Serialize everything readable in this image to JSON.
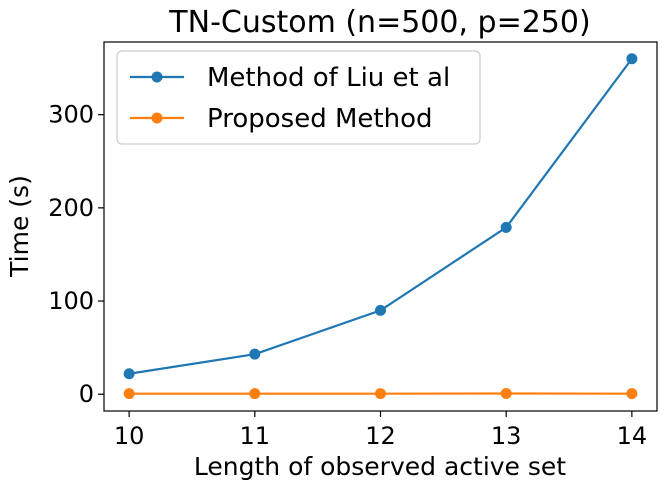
{
  "chart_data": {
    "type": "line",
    "title": "TN-Custom (n=500, p=250)",
    "xlabel": "Length of observed active set",
    "ylabel": "Time (s)",
    "x": [
      10,
      11,
      12,
      13,
      14
    ],
    "xticks": [
      10,
      11,
      12,
      13,
      14
    ],
    "yticks": [
      0,
      100,
      200,
      300
    ],
    "xlim": [
      9.8,
      14.2
    ],
    "ylim": [
      -18,
      378
    ],
    "grid": false,
    "legend": "top-left",
    "series": [
      {
        "name": "Method of Liu et al",
        "color": "#1f77b4",
        "values": [
          22,
          43,
          90,
          179,
          360
        ]
      },
      {
        "name": "Proposed Method",
        "color": "#ff7f0e",
        "values": [
          0.6,
          0.6,
          0.6,
          0.8,
          0.6
        ]
      }
    ]
  }
}
